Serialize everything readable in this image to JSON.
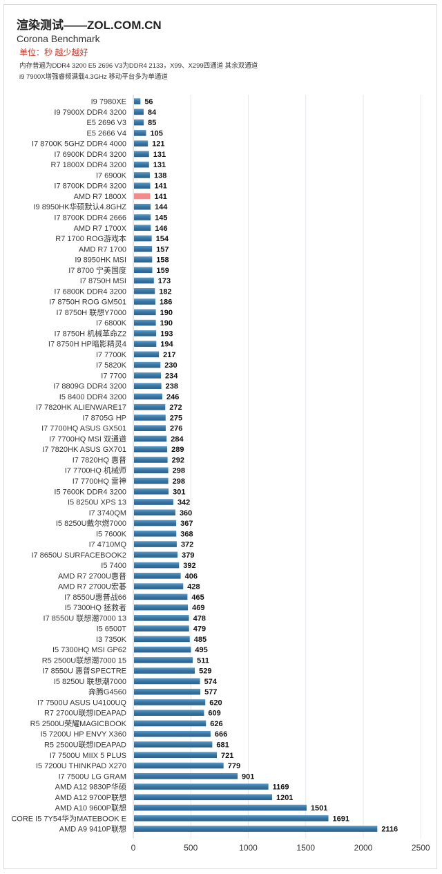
{
  "chart_data": {
    "type": "bar",
    "orientation": "horizontal",
    "title": "渲染测试——ZOL.COM.CN",
    "subtitle": "Corona Benchmark",
    "unit_note": "单位：秒 越少越好",
    "notes": [
      "内存普遍为DDR4 3200 E5 2696 V3为DDR4 2133，X99、X299四通道 其余双通道",
      "i9 7900X增强睿频满载4.3GHz 移动平台多为单通道"
    ],
    "xlim": [
      0,
      2500
    ],
    "xticks": [
      0,
      500,
      1000,
      1500,
      2000,
      2500
    ],
    "grid": true,
    "bar_color": "#3a78a6",
    "highlight_color": "#f28b8b",
    "highlight_index": 9,
    "categories": [
      "I9 7980XE",
      "I9 7900X DDR4 3200",
      "E5 2696 V3",
      "E5 2666 V4",
      "I7 8700K 5GHZ DDR4 4000",
      "I7 6900K DDR4 3200",
      "R7 1800X DDR4 3200",
      "I7 6900K",
      "I7 8700K DDR4 3200",
      "AMD R7 1800X",
      "I9 8950HK华硕默认4.8GHZ",
      "I7 8700K DDR4 2666",
      "AMD R7 1700X",
      "R7 1700 ROG游戏本",
      "AMD R7 1700",
      "I9 8950HK MSI",
      "I7 8700 宁美国度",
      "I7 8750H MSI",
      "I7 6800K DDR4 3200",
      "I7 8750H ROG GM501",
      "I7 8750H 联想Y7000",
      "I7 6800K",
      "I7 8750H 机械革命Z2",
      "I7 8750H HP暗影精灵4",
      "I7 7700K",
      "I7 5820K",
      "I7 7700",
      "I7 8809G DDR4 3200",
      "I5 8400 DDR4 3200",
      "I7 7820HK ALIENWARE17",
      "I7 8705G HP",
      "I7 7700HQ ASUS GX501",
      "I7 7700HQ MSI 双通道",
      "I7 7820HK ASUS GX701",
      "I7 7820HQ 惠普",
      "I7 7700HQ  机械师",
      "I7 7700HQ 雷神",
      "I5 7600K DDR4 3200",
      "I5 8250U XPS 13",
      "I7 3740QM",
      "I5 8250U戴尔燃7000",
      "I5 7600K",
      "I7 4710MQ",
      "I7 8650U SURFACEBOOK2",
      "I5 7400",
      "AMD R7 2700U惠普",
      "AMD R7 2700U宏碁",
      "I7 8550U惠普战66",
      "I5 7300HQ 拯救者",
      "I7 8550U 联想潮7000 13",
      "I5 6500T",
      "I3 7350K",
      "I5 7300HQ MSI GP62",
      "R5 2500U联想潮7000 15",
      "I7 8550U 惠普SPECTRE",
      "I5 8250U 联想潮7000",
      "奔腾G4560",
      "I7 7500U ASUS U4100UQ",
      "R7 2700U联想IDEAPAD",
      "R5 2500U荣耀MAGICBOOK",
      "I5 7200U HP ENVY X360",
      "R5 2500U联想IDEAPAD",
      "I7 7500U MIIX 5 PLUS",
      "I5 7200U THINKPAD X270",
      "I7 7500U LG GRAM",
      "AMD A12  9830P华硕",
      "AMD A12 9700P联想",
      "AMD A10 9600P联想",
      "CORE I5 7Y54华为MATEBOOK E",
      "AMD A9  9410P联想"
    ],
    "values": [
      56,
      84,
      85,
      105,
      121,
      131,
      131,
      138,
      141,
      141,
      144,
      145,
      146,
      154,
      157,
      158,
      159,
      173,
      182,
      186,
      190,
      190,
      193,
      194,
      217,
      230,
      234,
      238,
      246,
      272,
      275,
      276,
      284,
      289,
      292,
      298,
      298,
      301,
      342,
      360,
      367,
      368,
      372,
      379,
      392,
      406,
      428,
      465,
      469,
      478,
      479,
      485,
      495,
      511,
      529,
      574,
      577,
      620,
      609,
      626,
      666,
      681,
      721,
      779,
      901,
      1169,
      1201,
      1501,
      1691,
      2116
    ]
  }
}
